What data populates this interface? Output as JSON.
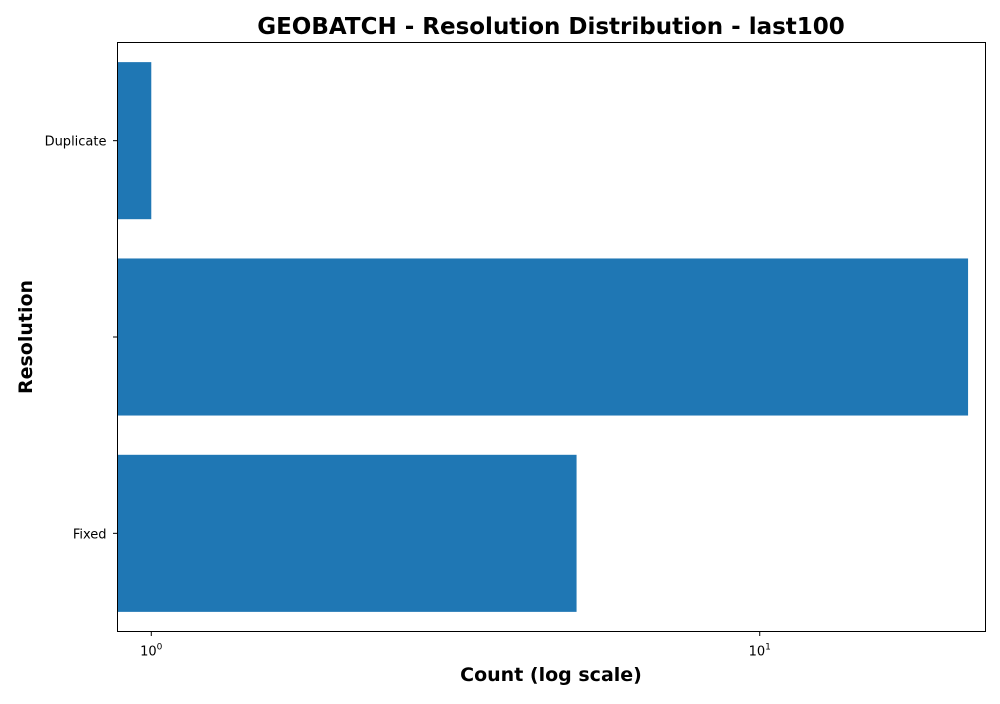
{
  "chart_data": {
    "type": "bar",
    "orientation": "horizontal",
    "title": "GEOBATCH - Resolution Distribution - last100",
    "xlabel": "Count (log scale)",
    "ylabel": "Resolution",
    "x_scale": "log",
    "xlim": [
      0.88,
      23.5
    ],
    "x_ticks": [
      {
        "base": "10",
        "exp": "0",
        "value": 1
      },
      {
        "base": "10",
        "exp": "1",
        "value": 10
      }
    ],
    "categories": [
      "Fixed",
      "",
      "Duplicate"
    ],
    "values": [
      5,
      22,
      1
    ],
    "bar_color": "#1f77b4",
    "grid": false,
    "legend": "none"
  }
}
